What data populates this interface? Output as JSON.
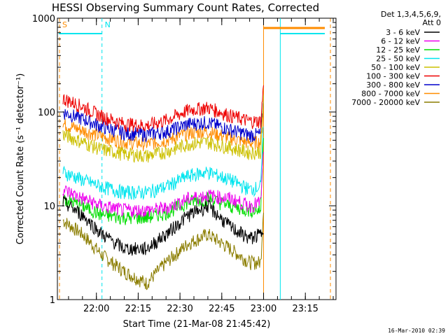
{
  "chart_data": {
    "type": "line",
    "title": "HESSI Observing Summary Count Rates, Corrected",
    "xlabel": "Start Time (21-Mar-08 21:45:42)",
    "ylabel": "Corrected Count Rate (s⁻¹ detector⁻¹)",
    "y_scale": "log",
    "ylim": [
      1,
      1000
    ],
    "y_ticks": [
      1,
      10,
      100,
      1000
    ],
    "y_tick_labels": [
      "1",
      "10",
      "100",
      "1000"
    ],
    "xlim": [
      "21:46",
      "23:26"
    ],
    "x_ticks": [
      "22:00",
      "22:15",
      "22:30",
      "22:45",
      "23:00",
      "23:15"
    ],
    "grid": false,
    "legend_placement": "right",
    "legend_header": [
      "Det 1,3,4,5,6,9,",
      "Att 0"
    ],
    "timestamp": "16-Mar-2010 02:39",
    "markers": [
      {
        "label": "S",
        "time": "21:46",
        "color": "#ff8c00"
      },
      {
        "label": "N",
        "time": "22:02",
        "color": "#00e5ee"
      }
    ],
    "time_points": [
      "21:48",
      "21:55",
      "22:02",
      "22:10",
      "22:18",
      "22:25",
      "22:33",
      "22:40",
      "22:48",
      "22:55",
      "22:59",
      "23:00"
    ],
    "series": [
      {
        "name": "3 - 6 keV",
        "color": "#000000",
        "values": [
          11,
          8,
          5,
          3.5,
          3.5,
          5,
          8,
          10,
          6,
          4.5,
          5,
          6
        ]
      },
      {
        "name": "6 - 12 keV",
        "color": "#ee00ee",
        "values": [
          15,
          12,
          10,
          9,
          9,
          9.5,
          12,
          13,
          12,
          10,
          11,
          40
        ]
      },
      {
        "name": "12 - 25 keV",
        "color": "#00dd00",
        "values": [
          12,
          10,
          8,
          7.5,
          7.5,
          8.5,
          11,
          12,
          10,
          9,
          9,
          60
        ]
      },
      {
        "name": "25 - 50 keV",
        "color": "#00e5ee",
        "values": [
          23,
          19,
          16,
          14,
          14,
          16,
          21,
          23,
          19,
          15,
          16,
          80
        ]
      },
      {
        "name": "50 - 100 keV",
        "color": "#ccc000",
        "values": [
          58,
          48,
          40,
          36,
          34,
          38,
          46,
          48,
          42,
          37,
          38,
          150
        ]
      },
      {
        "name": "100 - 300 keV",
        "color": "#ee0000",
        "values": [
          140,
          115,
          90,
          75,
          72,
          82,
          105,
          112,
          92,
          80,
          80,
          200
        ]
      },
      {
        "name": "300 - 800 keV",
        "color": "#0000cc",
        "values": [
          100,
          85,
          70,
          60,
          58,
          62,
          75,
          78,
          65,
          57,
          58,
          140
        ]
      },
      {
        "name": "800 - 7000 keV",
        "color": "#ff8c00",
        "values": [
          75,
          64,
          55,
          48,
          46,
          50,
          60,
          62,
          53,
          47,
          48,
          120
        ]
      },
      {
        "name": "7000 - 20000 keV",
        "color": "#8b7d00",
        "values": [
          7,
          5,
          3,
          2,
          1.5,
          2.5,
          4,
          5,
          3.5,
          2.5,
          2.5,
          10
        ]
      }
    ]
  }
}
